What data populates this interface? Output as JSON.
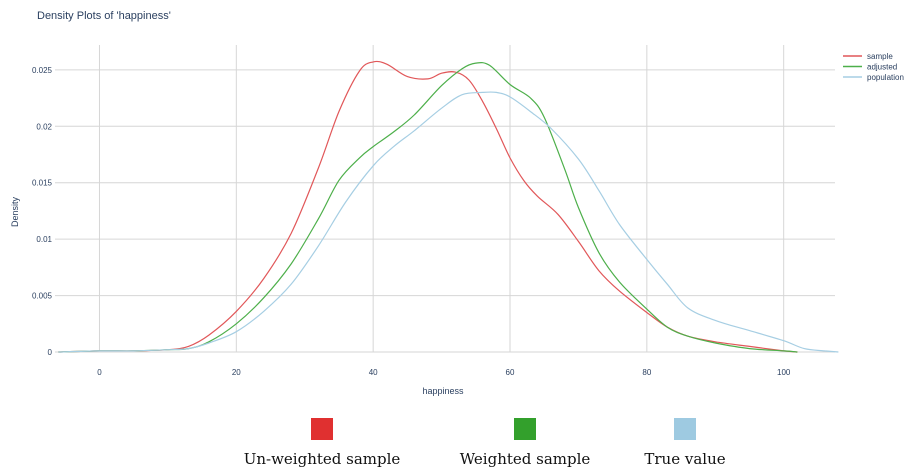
{
  "chart_data": {
    "type": "line",
    "title": "Density Plots of 'happiness'",
    "xlabel": "happiness",
    "ylabel": "Density",
    "xlim": [
      -6.5,
      107.5
    ],
    "ylim": [
      0,
      0.0272
    ],
    "x_ticks": [
      0,
      20,
      40,
      60,
      80,
      100
    ],
    "x_tick_labels": [
      "0",
      "20",
      "40",
      "60",
      "80",
      "100"
    ],
    "y_ticks": [
      0,
      0.005,
      0.01,
      0.015,
      0.02,
      0.025
    ],
    "y_tick_labels": [
      "0",
      "0.005",
      "0.01",
      "0.015",
      "0.02",
      "0.025"
    ],
    "grid": true,
    "legend_position": "top-right",
    "series": [
      {
        "name": "sample",
        "color": "#e15759",
        "x": [
          -6,
          0,
          5,
          10,
          13,
          16,
          20,
          24,
          28,
          32,
          35,
          38,
          40,
          42,
          45,
          48,
          50,
          52,
          54,
          56,
          58,
          60,
          62,
          64,
          67,
          70,
          73,
          76,
          80,
          83,
          86,
          90,
          95,
          100,
          102
        ],
        "y": [
          0,
          0.0001,
          0.0001,
          0.0002,
          0.0005,
          0.0015,
          0.0036,
          0.0065,
          0.0105,
          0.0163,
          0.0213,
          0.0249,
          0.0257,
          0.0255,
          0.0244,
          0.0242,
          0.0247,
          0.0248,
          0.0241,
          0.0222,
          0.0198,
          0.0172,
          0.0152,
          0.0138,
          0.0122,
          0.0098,
          0.0072,
          0.0054,
          0.0035,
          0.0022,
          0.0014,
          0.0009,
          0.0005,
          0.0001,
          0
        ]
      },
      {
        "name": "adjusted",
        "color": "#4daf4a",
        "x": [
          -6,
          0,
          5,
          10,
          13,
          16,
          20,
          24,
          28,
          32,
          35,
          38,
          40,
          43,
          46,
          50,
          53,
          55,
          57,
          60,
          63,
          65,
          68,
          70,
          73,
          76,
          80,
          83,
          86,
          90,
          95,
          100,
          102
        ],
        "y": [
          0,
          0.0001,
          0.0001,
          0.0002,
          0.0003,
          0.0009,
          0.0025,
          0.0048,
          0.0078,
          0.0118,
          0.0152,
          0.0172,
          0.0182,
          0.0195,
          0.021,
          0.0236,
          0.0251,
          0.0256,
          0.0254,
          0.0237,
          0.0225,
          0.0208,
          0.0162,
          0.0128,
          0.0088,
          0.0062,
          0.0038,
          0.0022,
          0.0014,
          0.0008,
          0.0003,
          0.0001,
          0
        ]
      },
      {
        "name": "population",
        "color": "#a6cee3",
        "x": [
          -6,
          0,
          5,
          10,
          13,
          16,
          20,
          24,
          28,
          32,
          36,
          40,
          43,
          46,
          50,
          53,
          56,
          58,
          60,
          63,
          66,
          70,
          73,
          76,
          80,
          83,
          86,
          90,
          95,
          100,
          103,
          106,
          108
        ],
        "y": [
          0,
          0.0001,
          0.0001,
          0.0002,
          0.0003,
          0.0008,
          0.0018,
          0.0036,
          0.006,
          0.0094,
          0.0133,
          0.0165,
          0.0182,
          0.0196,
          0.0216,
          0.0228,
          0.023,
          0.023,
          0.0226,
          0.0213,
          0.0198,
          0.0171,
          0.0143,
          0.0113,
          0.0082,
          0.006,
          0.0039,
          0.0028,
          0.0019,
          0.001,
          0.0003,
          0.0001,
          0
        ]
      }
    ]
  },
  "bottom_legend": {
    "items": [
      {
        "label": "Un-weighted sample",
        "color": "#e03030"
      },
      {
        "label": "Weighted sample",
        "color": "#33a02c"
      },
      {
        "label": "True value",
        "color": "#9ecae1"
      }
    ]
  }
}
